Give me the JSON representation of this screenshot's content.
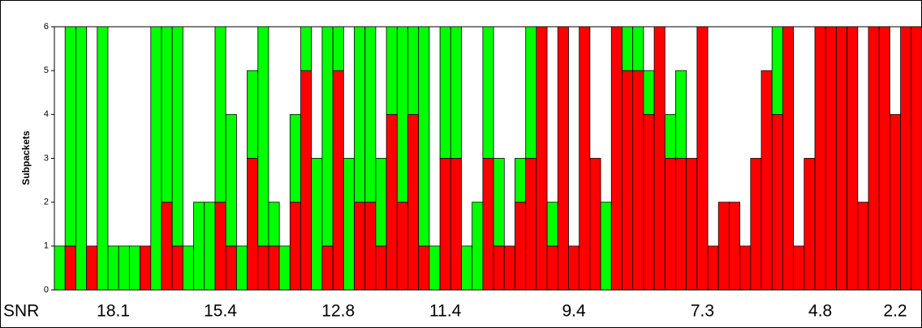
{
  "chart_data": {
    "type": "stacked_bar",
    "y_label": "Subpackets",
    "x_label": "SNR",
    "categories": [
      null,
      null,
      null,
      null,
      null,
      "18.1",
      null,
      null,
      null,
      null,
      null,
      null,
      null,
      null,
      null,
      "15.4",
      null,
      null,
      null,
      null,
      null,
      null,
      null,
      null,
      null,
      null,
      "12.8",
      null,
      null,
      null,
      null,
      null,
      null,
      null,
      null,
      null,
      "11.4",
      null,
      null,
      null,
      null,
      null,
      null,
      null,
      null,
      null,
      null,
      null,
      "9.4",
      null,
      null,
      null,
      null,
      null,
      null,
      null,
      null,
      null,
      null,
      null,
      "7.3",
      null,
      null,
      null,
      null,
      null,
      null,
      null,
      null,
      null,
      null,
      "4.8",
      null,
      null,
      null,
      null,
      null,
      null,
      "2.2",
      null,
      null
    ],
    "series": [
      {
        "color": "#ff0000",
        "values": [
          0,
          1,
          0,
          1,
          0,
          0,
          0,
          0,
          1,
          0,
          2,
          1,
          0,
          0,
          0,
          2,
          1,
          0,
          3,
          1,
          1,
          0,
          2,
          5,
          0,
          1,
          5,
          0,
          2,
          2,
          1,
          4,
          2,
          4,
          1,
          0,
          3,
          3,
          0,
          0,
          3,
          1,
          1,
          2,
          3,
          6,
          1,
          6,
          1,
          6,
          3,
          0,
          6,
          5,
          5,
          4,
          6,
          3,
          3,
          3,
          6,
          1,
          2,
          2,
          1,
          3,
          5,
          4,
          6,
          1,
          3,
          6,
          6,
          6,
          6,
          2,
          6,
          6,
          4,
          6,
          6
        ]
      },
      {
        "color": "#00ff00",
        "values": [
          1,
          5,
          6,
          0,
          6,
          1,
          1,
          1,
          0,
          6,
          4,
          5,
          1,
          2,
          2,
          4,
          3,
          1,
          2,
          5,
          1,
          1,
          2,
          1,
          3,
          5,
          1,
          3,
          4,
          4,
          2,
          2,
          4,
          2,
          5,
          1,
          3,
          3,
          1,
          2,
          3,
          2,
          0,
          1,
          3,
          0,
          1,
          0,
          0,
          0,
          0,
          2,
          0,
          1,
          1,
          1,
          0,
          1,
          2,
          0,
          0,
          0,
          0,
          0,
          0,
          0,
          0,
          2,
          0,
          0,
          0,
          0,
          0,
          0,
          0,
          0,
          0,
          0,
          0,
          0,
          0
        ]
      }
    ],
    "ylim": [
      0,
      6
    ],
    "yticks": [
      0,
      1,
      2,
      3,
      4,
      5,
      6
    ]
  }
}
